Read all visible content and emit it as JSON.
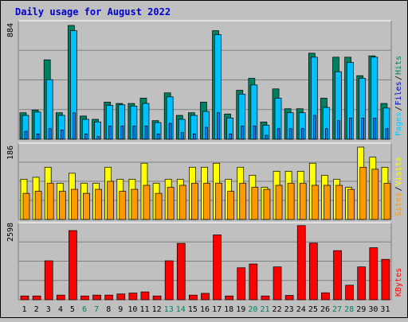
{
  "title": "Daily usage for August 2022",
  "colors": {
    "background": "#c0c0c0",
    "panel": "#c0c0c0",
    "title": "#0000cc",
    "hits": "#008060",
    "files": "#00c0ff",
    "pages": "#00ccff",
    "visits": "#ffff00",
    "sites": "#ff9900",
    "kbytes": "#ff0000",
    "weekend": "#008060",
    "weekday": "#000000"
  },
  "chart_data": [
    {
      "type": "bar",
      "panel": "hits-files-pages",
      "ymax_label": "884",
      "ymax": 884,
      "legend": [
        "Pages",
        "Files",
        "Hits"
      ],
      "x": [
        "1",
        "2",
        "3",
        "4",
        "5",
        "6",
        "7",
        "8",
        "9",
        "10",
        "11",
        "12",
        "13",
        "14",
        "15",
        "16",
        "17",
        "18",
        "19",
        "20",
        "21",
        "22",
        "23",
        "24",
        "25",
        "26",
        "27",
        "28",
        "29",
        "30",
        "31"
      ],
      "series": [
        {
          "name": "Hits",
          "values": [
            200,
            220,
            600,
            200,
            860,
            175,
            150,
            280,
            270,
            270,
            310,
            140,
            350,
            180,
            200,
            280,
            820,
            190,
            370,
            460,
            130,
            380,
            230,
            230,
            650,
            310,
            620,
            620,
            480,
            630,
            270
          ]
        },
        {
          "name": "Files",
          "values": [
            180,
            205,
            450,
            180,
            820,
            150,
            130,
            255,
            260,
            250,
            270,
            125,
            320,
            150,
            180,
            210,
            790,
            160,
            340,
            410,
            105,
            310,
            200,
            200,
            620,
            240,
            510,
            580,
            460,
            620,
            235
          ]
        },
        {
          "name": "Pages",
          "values": [
            60,
            40,
            80,
            70,
            200,
            40,
            20,
            100,
            100,
            100,
            100,
            40,
            120,
            50,
            40,
            90,
            200,
            40,
            100,
            100,
            30,
            80,
            80,
            80,
            180,
            80,
            140,
            160,
            160,
            160,
            80
          ]
        }
      ]
    },
    {
      "type": "bar",
      "panel": "visits-sites",
      "ymax_label": "186",
      "ymax": 186,
      "legend": [
        "Sites",
        "Visits"
      ],
      "x": [
        "1",
        "2",
        "3",
        "4",
        "5",
        "6",
        "7",
        "8",
        "9",
        "10",
        "11",
        "12",
        "13",
        "14",
        "15",
        "16",
        "17",
        "18",
        "19",
        "20",
        "21",
        "22",
        "23",
        "24",
        "25",
        "26",
        "27",
        "28",
        "29",
        "30",
        "31"
      ],
      "series": [
        {
          "name": "Visits",
          "values": [
            100,
            105,
            130,
            90,
            115,
            90,
            90,
            130,
            100,
            100,
            140,
            90,
            100,
            100,
            130,
            130,
            140,
            100,
            130,
            110,
            80,
            120,
            120,
            120,
            140,
            110,
            100,
            80,
            180,
            155,
            130
          ]
        },
        {
          "name": "Sites",
          "values": [
            65,
            70,
            90,
            70,
            75,
            65,
            75,
            95,
            70,
            75,
            85,
            65,
            80,
            85,
            90,
            90,
            90,
            70,
            90,
            80,
            75,
            85,
            90,
            90,
            85,
            85,
            85,
            75,
            130,
            125,
            90
          ]
        }
      ]
    },
    {
      "type": "bar",
      "panel": "kbytes",
      "ymax_label": "2598",
      "ymax": 2598,
      "legend": [
        "KBytes"
      ],
      "x": [
        "1",
        "2",
        "3",
        "4",
        "5",
        "6",
        "7",
        "8",
        "9",
        "10",
        "11",
        "12",
        "13",
        "14",
        "15",
        "16",
        "17",
        "18",
        "19",
        "20",
        "21",
        "22",
        "23",
        "24",
        "25",
        "26",
        "27",
        "28",
        "29",
        "30",
        "31"
      ],
      "series": [
        {
          "name": "KBytes",
          "values": [
            130,
            130,
            1340,
            160,
            2380,
            130,
            160,
            160,
            200,
            230,
            270,
            130,
            1340,
            1940,
            160,
            220,
            2230,
            130,
            1100,
            1230,
            130,
            1130,
            150,
            2550,
            1950,
            240,
            1690,
            500,
            1130,
            1790,
            1390
          ]
        }
      ]
    }
  ],
  "weekend_days": [
    6,
    7,
    13,
    14,
    20,
    21,
    27,
    28
  ]
}
